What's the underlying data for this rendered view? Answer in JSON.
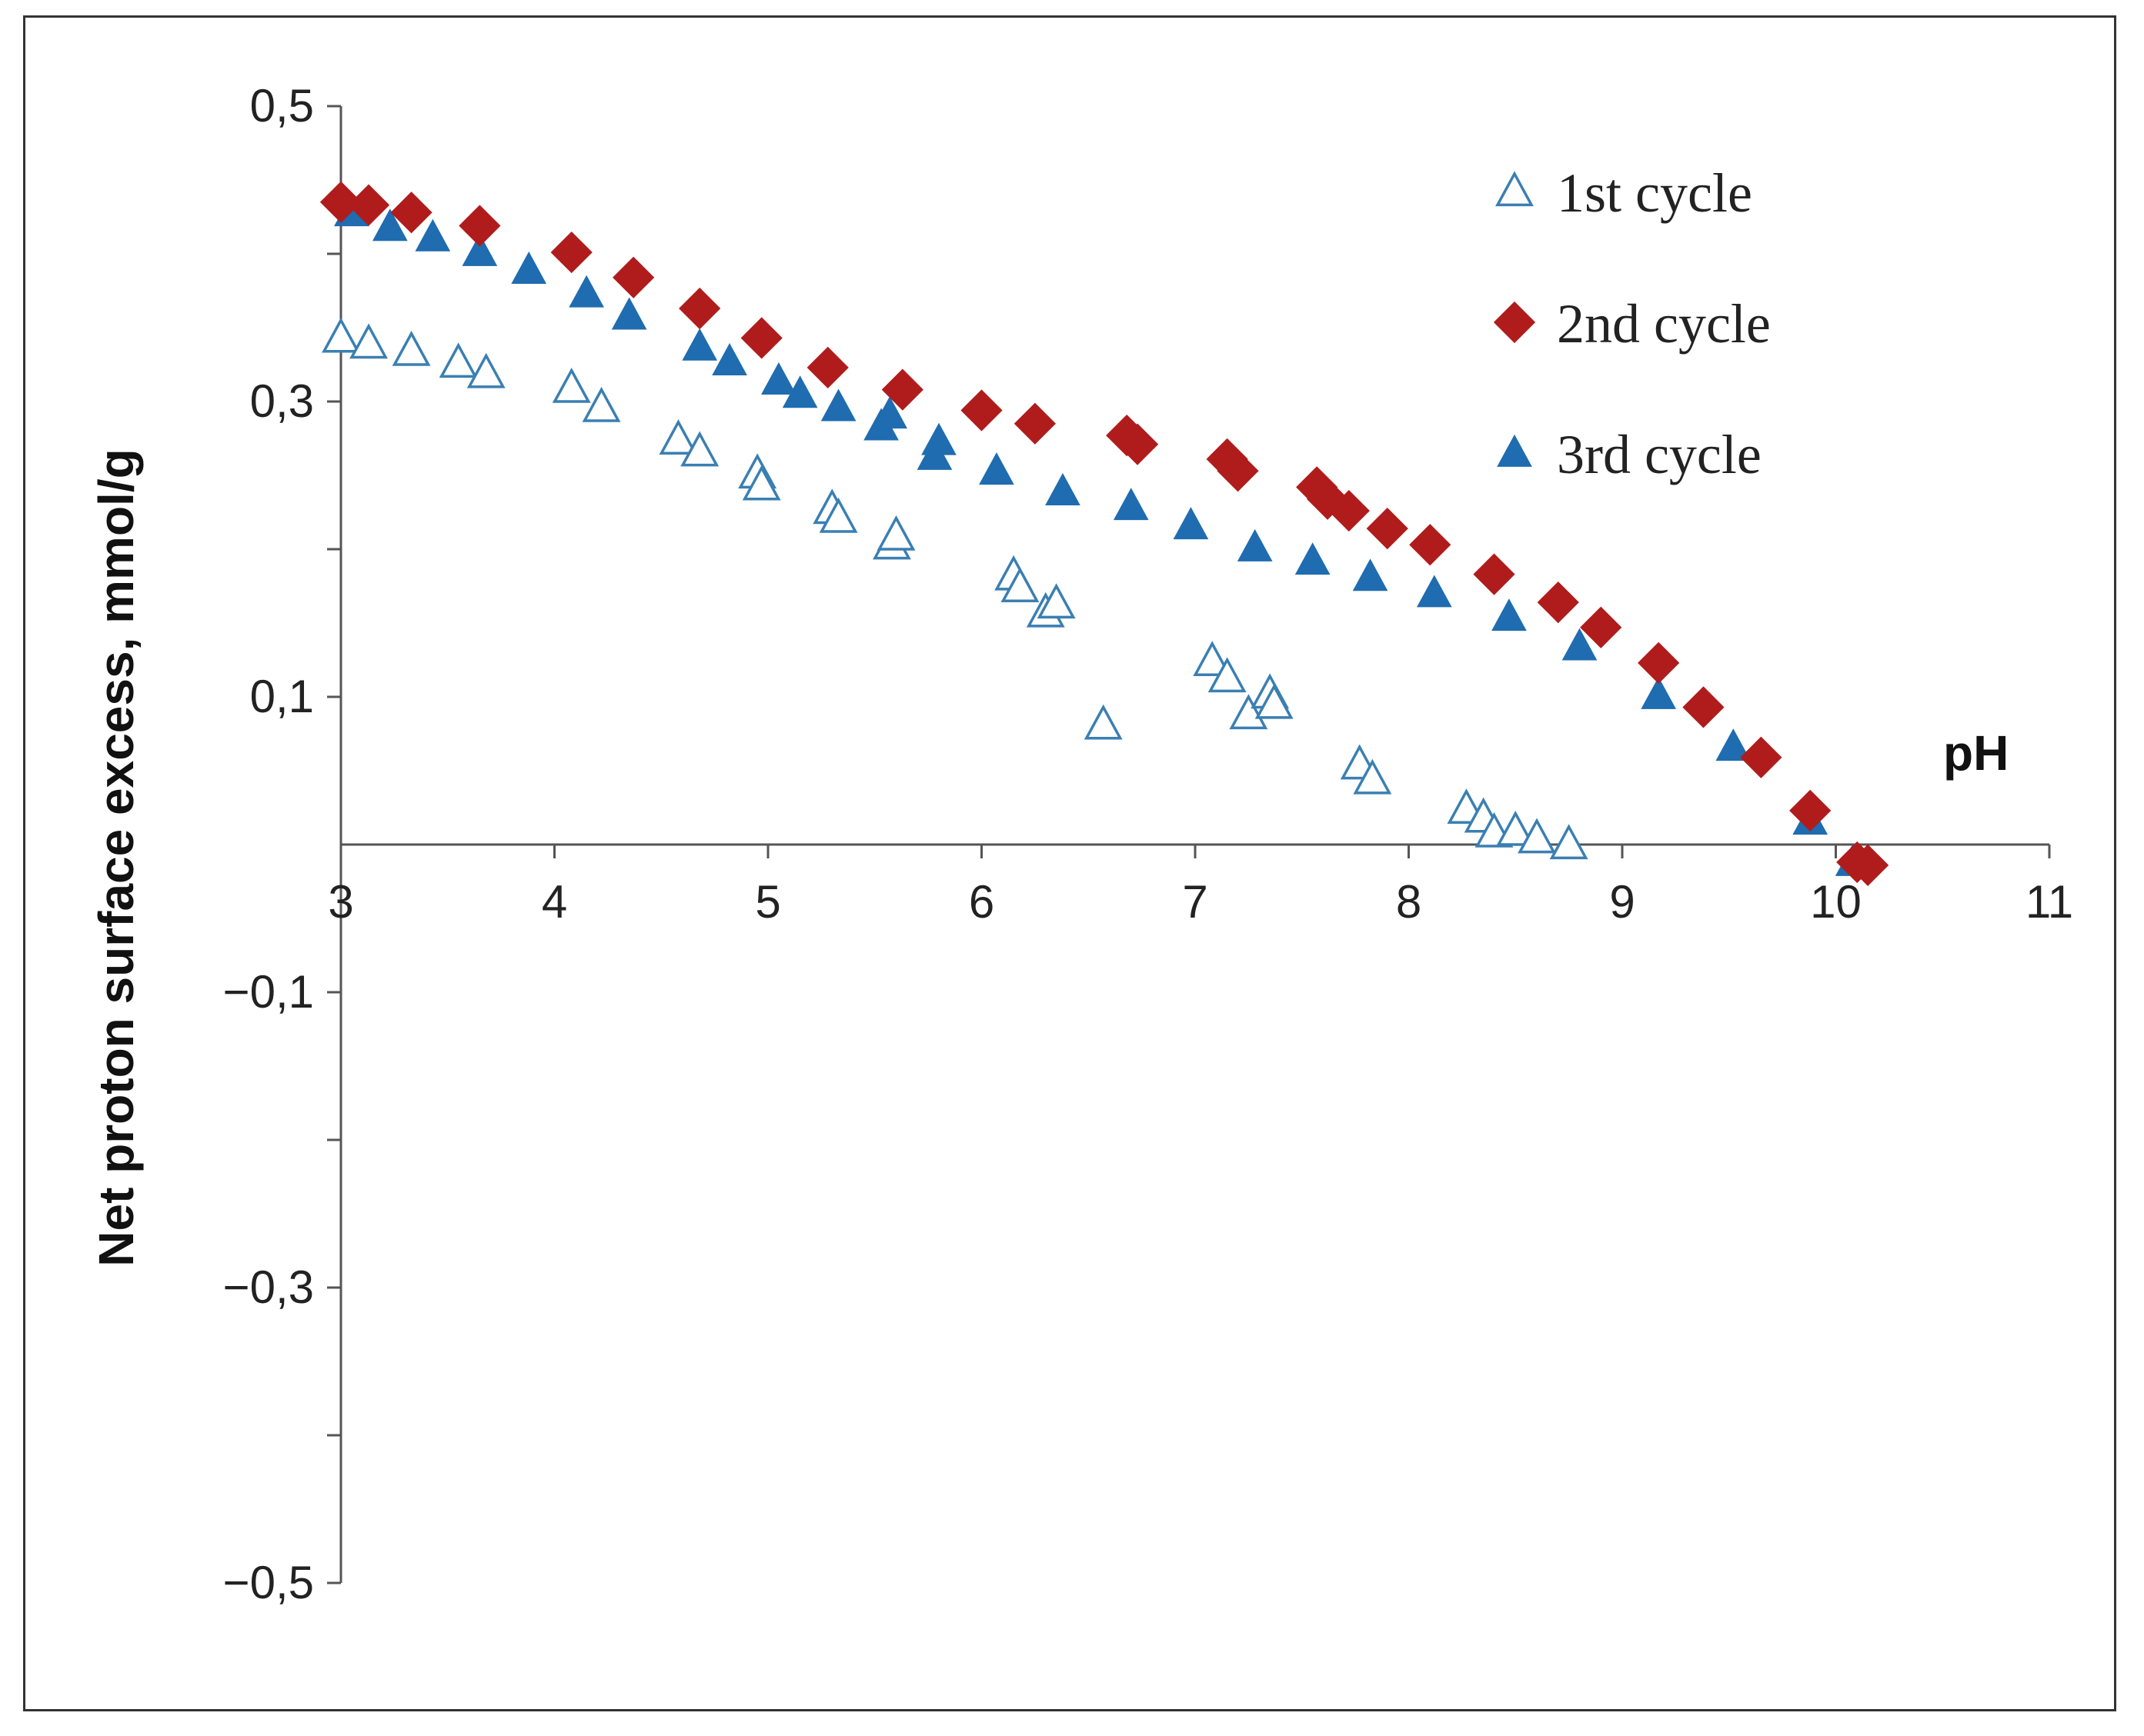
{
  "chart_data": {
    "type": "scatter",
    "title": "",
    "xlabel": "pH",
    "ylabel": "Net proton surface excess, mmol/g",
    "xlim": [
      3,
      11
    ],
    "ylim": [
      -0.5,
      0.5
    ],
    "grid": false,
    "legend_position": "top-right",
    "x_ticks": [
      3,
      4,
      5,
      6,
      7,
      8,
      9,
      10,
      11
    ],
    "x_tick_labels": [
      "3",
      "4",
      "5",
      "6",
      "7",
      "8",
      "9",
      "10",
      "11"
    ],
    "y_labeled_ticks": [
      0.5,
      0.3,
      0.1,
      -0.1,
      -0.3,
      -0.5
    ],
    "y_tick_labels": [
      "0,5",
      "0,3",
      "0,1",
      "−0,1",
      "−0,3",
      "−0,5"
    ],
    "y_minor_ticks": [
      0.4,
      0.2,
      0.0,
      -0.2,
      -0.4
    ],
    "series": [
      {
        "name": "1st cycle",
        "marker": "triangle-open",
        "color": "#3a7fb2",
        "points": [
          [
            3.0,
            0.343
          ],
          [
            3.13,
            0.339
          ],
          [
            3.33,
            0.334
          ],
          [
            3.55,
            0.326
          ],
          [
            3.68,
            0.319
          ],
          [
            4.08,
            0.309
          ],
          [
            4.22,
            0.296
          ],
          [
            4.58,
            0.274
          ],
          [
            4.68,
            0.266
          ],
          [
            4.95,
            0.251
          ],
          [
            4.97,
            0.243
          ],
          [
            5.3,
            0.227
          ],
          [
            5.33,
            0.221
          ],
          [
            5.58,
            0.203
          ],
          [
            5.6,
            0.209
          ],
          [
            6.15,
            0.182
          ],
          [
            6.18,
            0.174
          ],
          [
            6.3,
            0.157
          ],
          [
            6.35,
            0.163
          ],
          [
            6.57,
            0.081
          ],
          [
            7.08,
            0.124
          ],
          [
            7.15,
            0.113
          ],
          [
            7.25,
            0.088
          ],
          [
            7.35,
            0.102
          ],
          [
            7.37,
            0.095
          ],
          [
            7.77,
            0.054
          ],
          [
            7.83,
            0.044
          ],
          [
            8.27,
            0.024
          ],
          [
            8.35,
            0.018
          ],
          [
            8.4,
            0.008
          ],
          [
            8.5,
            0.009
          ],
          [
            8.6,
            0.004
          ],
          [
            8.75,
            0.0
          ]
        ]
      },
      {
        "name": "2nd cycle",
        "marker": "diamond",
        "color": "#b01c1c",
        "points": [
          [
            3.0,
            0.435
          ],
          [
            3.13,
            0.433
          ],
          [
            3.33,
            0.428
          ],
          [
            3.65,
            0.419
          ],
          [
            4.08,
            0.401
          ],
          [
            4.37,
            0.384
          ],
          [
            4.68,
            0.363
          ],
          [
            4.97,
            0.343
          ],
          [
            5.28,
            0.323
          ],
          [
            5.63,
            0.308
          ],
          [
            6.0,
            0.294
          ],
          [
            6.25,
            0.285
          ],
          [
            6.68,
            0.277
          ],
          [
            6.73,
            0.271
          ],
          [
            7.15,
            0.261
          ],
          [
            7.2,
            0.253
          ],
          [
            7.57,
            0.242
          ],
          [
            7.62,
            0.234
          ],
          [
            7.72,
            0.226
          ],
          [
            7.9,
            0.214
          ],
          [
            8.1,
            0.203
          ],
          [
            8.4,
            0.183
          ],
          [
            8.7,
            0.164
          ],
          [
            8.9,
            0.147
          ],
          [
            9.17,
            0.123
          ],
          [
            9.38,
            0.093
          ],
          [
            9.65,
            0.059
          ],
          [
            9.88,
            0.023
          ],
          [
            10.1,
            -0.012
          ],
          [
            10.15,
            -0.014
          ]
        ]
      },
      {
        "name": "3rd cycle",
        "marker": "triangle",
        "color": "#1f6cb0",
        "points": [
          [
            3.05,
            0.428
          ],
          [
            3.23,
            0.418
          ],
          [
            3.43,
            0.411
          ],
          [
            3.65,
            0.401
          ],
          [
            3.88,
            0.389
          ],
          [
            4.15,
            0.373
          ],
          [
            4.35,
            0.358
          ],
          [
            4.68,
            0.337
          ],
          [
            4.82,
            0.327
          ],
          [
            5.05,
            0.314
          ],
          [
            5.15,
            0.305
          ],
          [
            5.33,
            0.296
          ],
          [
            5.53,
            0.283
          ],
          [
            5.57,
            0.291
          ],
          [
            5.78,
            0.263
          ],
          [
            5.8,
            0.273
          ],
          [
            6.07,
            0.253
          ],
          [
            6.38,
            0.239
          ],
          [
            6.7,
            0.229
          ],
          [
            6.98,
            0.216
          ],
          [
            7.28,
            0.201
          ],
          [
            7.55,
            0.192
          ],
          [
            7.82,
            0.181
          ],
          [
            8.12,
            0.17
          ],
          [
            8.47,
            0.154
          ],
          [
            8.8,
            0.134
          ],
          [
            9.17,
            0.101
          ],
          [
            9.52,
            0.066
          ],
          [
            9.88,
            0.016
          ],
          [
            10.08,
            -0.012
          ]
        ]
      }
    ]
  }
}
